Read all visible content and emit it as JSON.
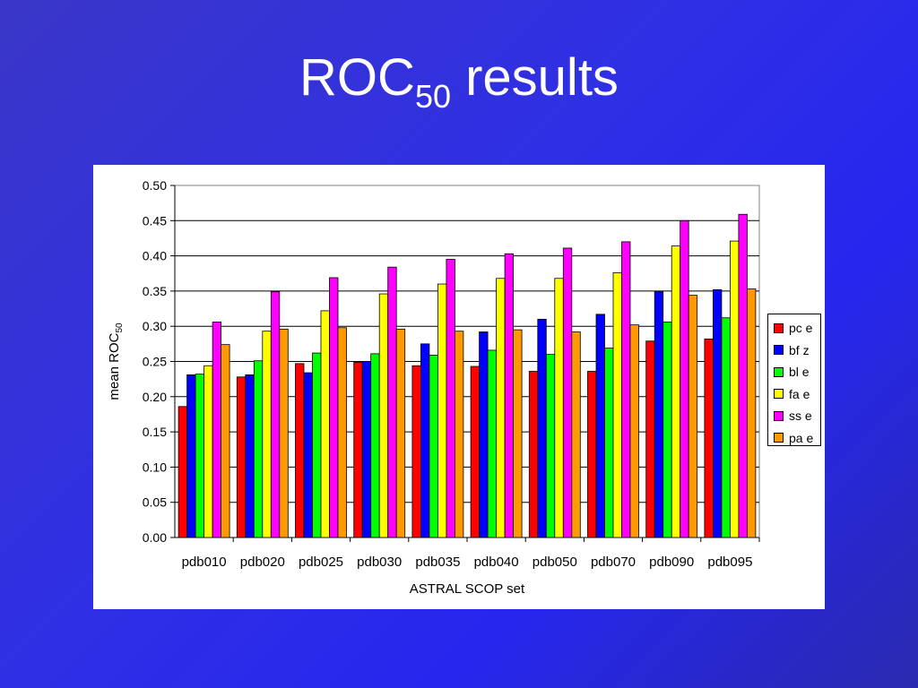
{
  "slide": {
    "title_main": "ROC",
    "title_sub": "50",
    "title_rest": " results"
  },
  "chart_data": {
    "type": "bar",
    "title": "",
    "xlabel": "ASTRAL SCOP set",
    "ylabel": "mean ROC",
    "ylabel_sub": "50",
    "ylim": [
      0,
      0.5
    ],
    "yticks": [
      "0.00",
      "0.05",
      "0.10",
      "0.15",
      "0.20",
      "0.25",
      "0.30",
      "0.35",
      "0.40",
      "0.45",
      "0.50"
    ],
    "grid": true,
    "legend_position": "right",
    "categories": [
      "pdb010",
      "pdb020",
      "pdb025",
      "pdb030",
      "pdb035",
      "pdb040",
      "pdb050",
      "pdb070",
      "pdb090",
      "pdb095"
    ],
    "series": [
      {
        "name": "pc e",
        "color": "#ff0000",
        "values": [
          0.186,
          0.228,
          0.247,
          0.249,
          0.244,
          0.243,
          0.236,
          0.236,
          0.279,
          0.282
        ]
      },
      {
        "name": "bf z",
        "color": "#0000ff",
        "values": [
          0.231,
          0.231,
          0.234,
          0.25,
          0.275,
          0.292,
          0.31,
          0.317,
          0.349,
          0.352
        ]
      },
      {
        "name": "bl e",
        "color": "#00ff00",
        "values": [
          0.232,
          0.251,
          0.262,
          0.261,
          0.259,
          0.266,
          0.26,
          0.269,
          0.306,
          0.312
        ]
      },
      {
        "name": "fa e",
        "color": "#ffff00",
        "values": [
          0.244,
          0.293,
          0.322,
          0.346,
          0.36,
          0.368,
          0.368,
          0.376,
          0.414,
          0.421
        ]
      },
      {
        "name": "ss e",
        "color": "#ff00ff",
        "values": [
          0.306,
          0.349,
          0.369,
          0.384,
          0.395,
          0.403,
          0.411,
          0.42,
          0.45,
          0.459
        ]
      },
      {
        "name": "pa e",
        "color": "#ff9900",
        "values": [
          0.274,
          0.296,
          0.298,
          0.296,
          0.293,
          0.295,
          0.292,
          0.302,
          0.344,
          0.353
        ]
      }
    ]
  }
}
